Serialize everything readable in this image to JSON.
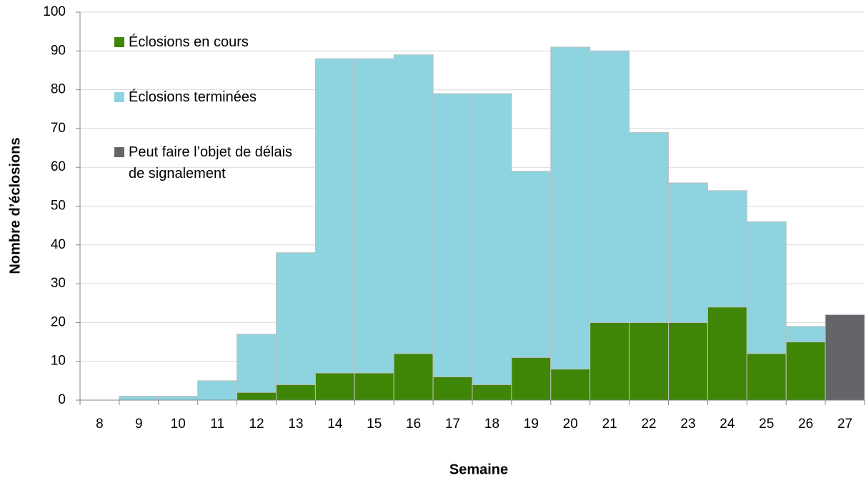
{
  "chart_data": {
    "type": "stacked_bar",
    "x_label": "Semaine",
    "y_label": "Nombre d’éclosions",
    "categories": [
      "8",
      "9",
      "10",
      "11",
      "12",
      "13",
      "14",
      "15",
      "16",
      "17",
      "18",
      "19",
      "20",
      "21",
      "22",
      "23",
      "24",
      "25",
      "26",
      "27"
    ],
    "series": [
      {
        "name": "Éclosions en cours",
        "color": "#3f8606",
        "values": [
          0,
          0,
          0,
          0,
          2,
          4,
          7,
          7,
          12,
          6,
          4,
          11,
          8,
          20,
          20,
          20,
          24,
          12,
          15,
          0
        ]
      },
      {
        "name": "Éclosions terminées",
        "color": "#8dd4e0",
        "values": [
          0,
          1,
          1,
          5,
          15,
          34,
          81,
          81,
          77,
          73,
          75,
          48,
          83,
          70,
          49,
          36,
          30,
          34,
          4,
          0
        ]
      },
      {
        "name": "Peut faire l’objet de délais de signalement",
        "color": "#646569",
        "values": [
          0,
          0,
          0,
          0,
          0,
          0,
          0,
          0,
          0,
          0,
          0,
          0,
          0,
          0,
          0,
          0,
          0,
          0,
          0,
          22
        ]
      }
    ],
    "ylim": [
      0,
      100
    ],
    "yticks": [
      0,
      10,
      20,
      30,
      40,
      50,
      60,
      70,
      80,
      90,
      100
    ],
    "grid": true,
    "legend": "upper left"
  }
}
